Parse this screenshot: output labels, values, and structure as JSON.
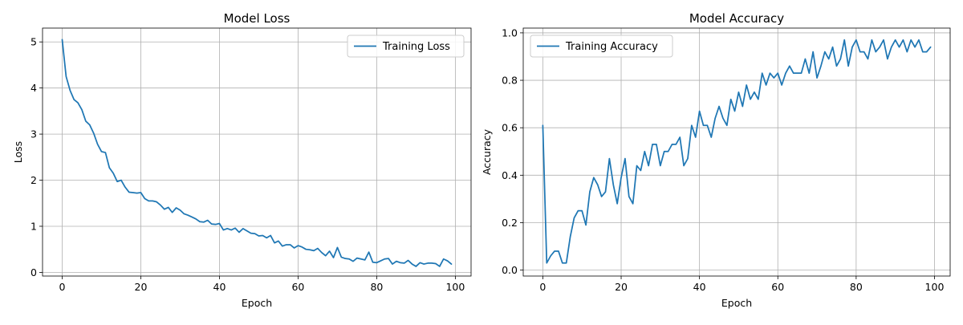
{
  "chart_data": [
    {
      "type": "line",
      "title": "Model Loss",
      "xlabel": "Epoch",
      "ylabel": "Loss",
      "xlim": [
        -5,
        104
      ],
      "ylim": [
        -0.08,
        5.3
      ],
      "xticks": [
        0,
        20,
        40,
        60,
        80,
        100
      ],
      "yticks": [
        0,
        1,
        2,
        3,
        4,
        5
      ],
      "ytick_decimals": 0,
      "grid": true,
      "legend_position": "upper right",
      "series": [
        {
          "name": "Training Loss",
          "color": "#1f77b4",
          "x": [
            0,
            1,
            2,
            3,
            4,
            5,
            6,
            7,
            8,
            9,
            10,
            11,
            12,
            13,
            14,
            15,
            16,
            17,
            18,
            19,
            20,
            21,
            22,
            23,
            24,
            25,
            26,
            27,
            28,
            29,
            30,
            31,
            32,
            33,
            34,
            35,
            36,
            37,
            38,
            39,
            40,
            41,
            42,
            43,
            44,
            45,
            46,
            47,
            48,
            49,
            50,
            51,
            52,
            53,
            54,
            55,
            56,
            57,
            58,
            59,
            60,
            61,
            62,
            63,
            64,
            65,
            66,
            67,
            68,
            69,
            70,
            71,
            72,
            73,
            74,
            75,
            76,
            77,
            78,
            79,
            80,
            81,
            82,
            83,
            84,
            85,
            86,
            87,
            88,
            89,
            90,
            91,
            92,
            93,
            94,
            95,
            96,
            97,
            98,
            99
          ],
          "y": [
            5.05,
            4.25,
            3.95,
            3.75,
            3.68,
            3.53,
            3.28,
            3.2,
            3.02,
            2.78,
            2.62,
            2.6,
            2.27,
            2.15,
            1.97,
            2.0,
            1.85,
            1.74,
            1.73,
            1.72,
            1.73,
            1.6,
            1.55,
            1.55,
            1.53,
            1.46,
            1.37,
            1.41,
            1.3,
            1.4,
            1.35,
            1.27,
            1.24,
            1.2,
            1.16,
            1.1,
            1.09,
            1.13,
            1.05,
            1.04,
            1.06,
            0.92,
            0.95,
            0.92,
            0.96,
            0.87,
            0.95,
            0.9,
            0.85,
            0.84,
            0.79,
            0.8,
            0.75,
            0.8,
            0.64,
            0.68,
            0.57,
            0.6,
            0.6,
            0.53,
            0.58,
            0.55,
            0.5,
            0.49,
            0.47,
            0.52,
            0.43,
            0.36,
            0.46,
            0.32,
            0.54,
            0.33,
            0.3,
            0.29,
            0.24,
            0.31,
            0.29,
            0.27,
            0.44,
            0.22,
            0.21,
            0.25,
            0.29,
            0.3,
            0.18,
            0.24,
            0.21,
            0.2,
            0.26,
            0.18,
            0.13,
            0.21,
            0.18,
            0.2,
            0.2,
            0.19,
            0.13,
            0.29,
            0.25,
            0.18
          ]
        }
      ]
    },
    {
      "type": "line",
      "title": "Model Accuracy",
      "xlabel": "Epoch",
      "ylabel": "Accuracy",
      "xlim": [
        -5,
        104
      ],
      "ylim": [
        -0.025,
        1.02
      ],
      "xticks": [
        0,
        20,
        40,
        60,
        80,
        100
      ],
      "yticks": [
        0.0,
        0.2,
        0.4,
        0.6,
        0.8,
        1.0
      ],
      "ytick_decimals": 1,
      "grid": true,
      "legend_position": "upper left",
      "series": [
        {
          "name": "Training Accuracy",
          "color": "#1f77b4",
          "x": [
            0,
            1,
            2,
            3,
            4,
            5,
            6,
            7,
            8,
            9,
            10,
            11,
            12,
            13,
            14,
            15,
            16,
            17,
            18,
            19,
            20,
            21,
            22,
            23,
            24,
            25,
            26,
            27,
            28,
            29,
            30,
            31,
            32,
            33,
            34,
            35,
            36,
            37,
            38,
            39,
            40,
            41,
            42,
            43,
            44,
            45,
            46,
            47,
            48,
            49,
            50,
            51,
            52,
            53,
            54,
            55,
            56,
            57,
            58,
            59,
            60,
            61,
            62,
            63,
            64,
            65,
            66,
            67,
            68,
            69,
            70,
            71,
            72,
            73,
            74,
            75,
            76,
            77,
            78,
            79,
            80,
            81,
            82,
            83,
            84,
            85,
            86,
            87,
            88,
            89,
            90,
            91,
            92,
            93,
            94,
            95,
            96,
            97,
            98,
            99
          ],
          "y": [
            0.61,
            0.03,
            0.06,
            0.08,
            0.08,
            0.03,
            0.03,
            0.14,
            0.22,
            0.25,
            0.25,
            0.19,
            0.33,
            0.39,
            0.36,
            0.31,
            0.33,
            0.47,
            0.36,
            0.28,
            0.39,
            0.47,
            0.31,
            0.28,
            0.44,
            0.42,
            0.5,
            0.44,
            0.53,
            0.53,
            0.44,
            0.5,
            0.5,
            0.53,
            0.53,
            0.56,
            0.44,
            0.47,
            0.61,
            0.56,
            0.67,
            0.61,
            0.61,
            0.56,
            0.64,
            0.69,
            0.64,
            0.61,
            0.72,
            0.67,
            0.75,
            0.69,
            0.78,
            0.72,
            0.75,
            0.72,
            0.83,
            0.78,
            0.83,
            0.81,
            0.83,
            0.78,
            0.83,
            0.86,
            0.83,
            0.83,
            0.83,
            0.89,
            0.83,
            0.92,
            0.81,
            0.86,
            0.92,
            0.89,
            0.94,
            0.86,
            0.89,
            0.97,
            0.86,
            0.94,
            0.97,
            0.92,
            0.92,
            0.89,
            0.97,
            0.92,
            0.94,
            0.97,
            0.89,
            0.94,
            0.97,
            0.94,
            0.97,
            0.92,
            0.97,
            0.94,
            0.97,
            0.92,
            0.92,
            0.94
          ]
        }
      ]
    }
  ]
}
